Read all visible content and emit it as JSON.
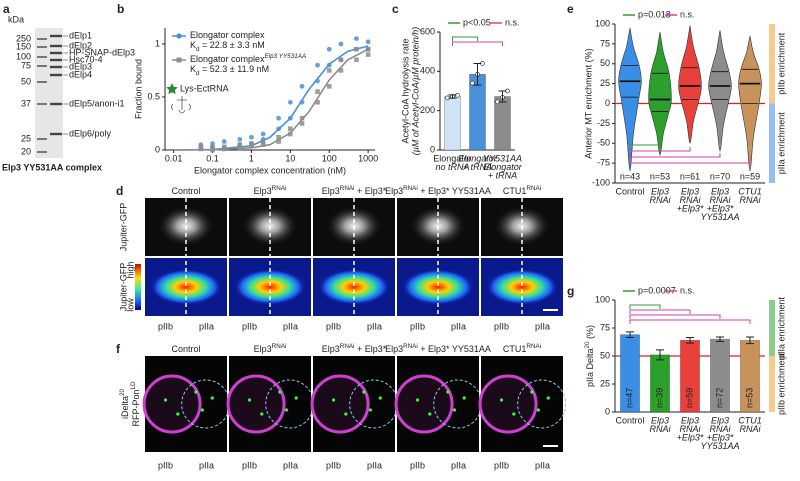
{
  "panel_a": {
    "letter": "a",
    "unit": "kDa",
    "ladder": [
      250,
      150,
      100,
      75,
      50,
      37,
      25,
      20
    ],
    "bands": [
      "dElp1",
      "dElp2",
      "HP-SNAP-dElp3",
      "Hsc70-4",
      "dElp3",
      "dElp4",
      "dElp5/anon-i1",
      "dElp6/poly"
    ],
    "caption": "Elp3 YY531AA complex"
  },
  "micrographs": {
    "columns": [
      [
        "Control"
      ],
      [
        "Elp3",
        {
          "sup": "RNAi"
        }
      ],
      [
        "Elp3",
        {
          "sup": "RNAi"
        },
        " + Elp3*"
      ],
      [
        "Elp3",
        {
          "sup": "RNAi"
        },
        " + Elp3* YY531AA"
      ],
      [
        "CTU1",
        {
          "sup": "RNAi"
        }
      ]
    ],
    "column_colors": [
      "#3a8ee6",
      "#2ca02c",
      "#e8403a",
      "#7a7a7a",
      "#c8843a"
    ],
    "cell_colors": [
      "#e8a020",
      "#3a8ee6"
    ],
    "d": {
      "letter": "d",
      "rows": [
        "Jupiter-GFP",
        "Jupiter-GFP"
      ],
      "scale": [
        "high",
        "low"
      ],
      "cells": [
        "pIIb",
        "pIIa"
      ]
    },
    "f": {
      "letter": "f",
      "rows": [
        [
          "iDelta",
          {
            "sup": "20"
          }
        ],
        [
          "RFP-Pon",
          {
            "sup": "LD"
          }
        ]
      ],
      "row_colors": [
        "#2ca02c",
        "#d040d0"
      ],
      "cells": [
        "pIIb",
        "pIIa"
      ]
    }
  },
  "chart_data": [
    {
      "type": "scatter",
      "letter": "b",
      "x_label": "Elongator complex concentration (nM)",
      "y_label": "Fraction bound",
      "log_x": true,
      "xlim": [
        0.006,
        1500
      ],
      "ylim": [
        0,
        1.15
      ],
      "xticks": [
        0.01,
        0.1,
        1,
        10,
        100,
        1000
      ],
      "yticks": [
        0,
        0.5,
        1
      ],
      "annotation": "Lys-EctRNA",
      "series": [
        {
          "name": "Elongator complex",
          "kd_label": [
            "K",
            {
              "sub": "d"
            },
            " = 22.8 ± 3.3 nM"
          ],
          "color": "#4a90d9",
          "marker": "circle",
          "x": [
            0.05,
            0.05,
            0.1,
            0.1,
            0.2,
            0.2,
            0.5,
            0.5,
            1,
            1,
            2,
            2,
            5,
            5,
            10,
            10,
            20,
            20,
            50,
            50,
            100,
            100,
            200,
            200,
            500,
            500,
            1000,
            1000
          ],
          "values": [
            0.02,
            0.05,
            0.03,
            0.06,
            0.02,
            0.08,
            0.05,
            0.1,
            0.06,
            0.12,
            0.1,
            0.15,
            0.2,
            0.3,
            0.3,
            0.45,
            0.45,
            0.6,
            0.65,
            0.8,
            0.8,
            0.95,
            0.85,
            1.0,
            0.95,
            1.05,
            0.95,
            1.02
          ],
          "fit_x": [
            0.01,
            0.1,
            1,
            3,
            10,
            30,
            100,
            300,
            1000
          ],
          "fit": [
            0.0,
            0.004,
            0.04,
            0.12,
            0.3,
            0.57,
            0.81,
            0.93,
            0.98
          ]
        },
        {
          "name": "Elongator complex",
          "name_sup": "Elp3 YY531AA",
          "kd_label": [
            "K",
            {
              "sub": "d"
            },
            " = 52.3 ± 11.9 nM"
          ],
          "color": "#8c8c8c",
          "marker": "square",
          "x": [
            0.05,
            0.05,
            0.1,
            0.1,
            0.2,
            0.2,
            0.5,
            0.5,
            1,
            1,
            2,
            2,
            5,
            5,
            10,
            10,
            20,
            20,
            50,
            50,
            100,
            100,
            200,
            200,
            500,
            500,
            1000,
            1000
          ],
          "values": [
            0.01,
            0.03,
            0.02,
            0.0,
            0.03,
            0.01,
            0.02,
            0.05,
            0.04,
            0.06,
            0.05,
            0.08,
            0.08,
            0.12,
            0.15,
            0.2,
            0.25,
            0.3,
            0.45,
            0.55,
            0.6,
            0.75,
            0.75,
            0.85,
            0.85,
            0.95,
            0.9,
            0.95
          ],
          "fit_x": [
            0.01,
            0.1,
            1,
            3,
            10,
            30,
            100,
            300,
            1000
          ],
          "fit": [
            0.0,
            0.002,
            0.02,
            0.05,
            0.16,
            0.36,
            0.66,
            0.85,
            0.95
          ]
        }
      ]
    },
    {
      "type": "bar",
      "letter": "c",
      "y_label": "Acetyl-CoA hydrolysis rate",
      "y_label_2": "(µM of Acetyl-CoA/µM protein/h)",
      "categories": [
        [
          "Elongator",
          "no tRNA"
        ],
        [
          "Elongator",
          "+ tRNA"
        ],
        [
          "YY531AA",
          "Elongator",
          "+ tRNA"
        ]
      ],
      "values": [
        272,
        385,
        272
      ],
      "errors": [
        8,
        55,
        28
      ],
      "points": [
        [
          265,
          272,
          278
        ],
        [
          340,
          385,
          440
        ],
        [
          245,
          268,
          300
        ]
      ],
      "colors": [
        "#cfe3f7",
        "#4a90d9",
        "#8c8c8c"
      ],
      "ylim": [
        0,
        600
      ],
      "yticks": [
        0,
        200,
        400,
        600
      ],
      "bracket_side": "top",
      "significance": [
        {
          "label": "p<0.05",
          "color": "#2ca02c"
        },
        {
          "label": "n.s.",
          "color": "#d63fa8"
        }
      ]
    },
    {
      "type": "violin",
      "letter": "e",
      "y_label": "Anterior MT enrichment (%)",
      "categories": [
        [
          "Control"
        ],
        [
          "Elp3",
          "RNAi"
        ],
        [
          "Elp3",
          "RNAi",
          "+Elp3*"
        ],
        [
          "Elp3",
          "RNAi",
          "+Elp3*",
          "YY531AA"
        ],
        [
          "CTU1",
          "RNAi"
        ]
      ],
      "colors": [
        "#3a8ee6",
        "#2ca02c",
        "#e8403a",
        "#8c8c8c",
        "#c8935a"
      ],
      "n_labels": [
        "n=43",
        "n=53",
        "n=61",
        "n=70",
        "n=59"
      ],
      "stats": [
        {
          "min": -85,
          "q1": 8,
          "median": 28,
          "q3": 48,
          "max": 95
        },
        {
          "min": -65,
          "q1": -10,
          "median": 5,
          "q3": 38,
          "max": 90
        },
        {
          "min": -50,
          "q1": 5,
          "median": 22,
          "q3": 45,
          "max": 98
        },
        {
          "min": -60,
          "q1": 5,
          "median": 22,
          "q3": 40,
          "max": 92
        },
        {
          "min": -85,
          "q1": 0,
          "median": 25,
          "q3": 43,
          "max": 85
        }
      ],
      "ylim": [
        -100,
        100
      ],
      "yticks": [
        -100,
        -75,
        -50,
        -25,
        0,
        25,
        50,
        75,
        100
      ],
      "reference_line": 0,
      "bracket_side": "bottom",
      "side_labels": [
        {
          "text": "pIIb enrichment",
          "color": "#f0a030"
        },
        {
          "text": "pIIa enrichment",
          "color": "#3a8ee6"
        }
      ],
      "significance": [
        {
          "label": "p=0.018",
          "color": "#2ca02c"
        },
        {
          "label": "n.s.",
          "color": "#d63fa8"
        }
      ]
    },
    {
      "type": "bar",
      "letter": "g",
      "y_label": [
        "pIIa Delta",
        {
          "sup": "20"
        },
        " (%)"
      ],
      "categories": [
        [
          "Control"
        ],
        [
          "Elp3",
          "RNAi"
        ],
        [
          "Elp3",
          "RNAi",
          "+Elp3*"
        ],
        [
          "Elp3",
          "RNAi",
          "+Elp3*",
          "YY531AA"
        ],
        [
          "CTU1",
          "RNAi"
        ]
      ],
      "values": [
        69,
        51,
        64,
        65,
        64
      ],
      "errors": [
        2.5,
        4.5,
        2.5,
        2,
        3
      ],
      "colors": [
        "#3a8ee6",
        "#2ca02c",
        "#e8403a",
        "#8c8c8c",
        "#c8935a"
      ],
      "n_labels": [
        "n=47",
        "n=39",
        "n=59",
        "n=72",
        "n=53"
      ],
      "ylim": [
        0,
        100
      ],
      "yticks": [
        0,
        25,
        50,
        75,
        100
      ],
      "reference_line": 50,
      "bracket_side": "top",
      "side_labels": [
        {
          "text": "pIIa enrichment",
          "color": "#2ca02c"
        },
        {
          "text": "pIIb enrichment",
          "color": "#f0a030"
        }
      ],
      "significance": [
        {
          "label": "p=0.0007",
          "color": "#2ca02c"
        },
        {
          "label": "n.s.",
          "color": "#d63fa8"
        }
      ]
    }
  ]
}
